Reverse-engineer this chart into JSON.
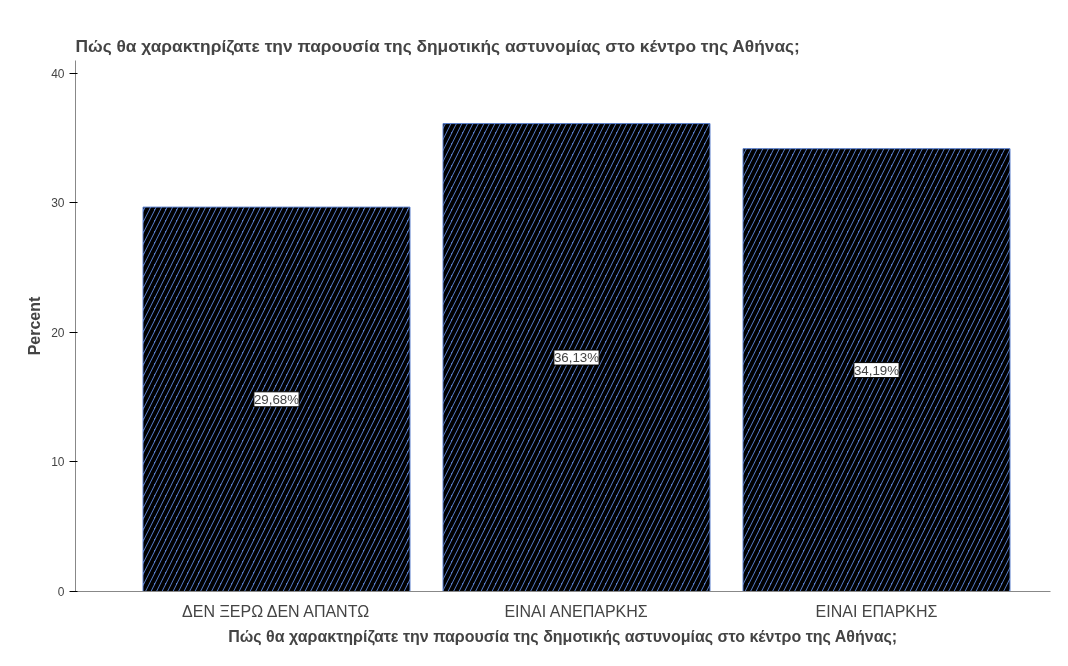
{
  "chart_data": {
    "type": "bar",
    "title": "Πώς θα χαρακτηρίζατε την παρουσία της δημοτικής αστυνομίας στο κέντρο της Αθήνας;",
    "xlabel": "Πώς θα χαρακτηρίζατε την παρουσία της δημοτικής αστυνομίας στο κέντρο της Αθήνας;",
    "ylabel": "Percent",
    "categories": [
      "ΔΕΝ ΞΕΡΩ ΔΕΝ ΑΠΑΝΤΩ",
      "ΕΙΝΑΙ ΑΝΕΠΑΡΚΗΣ",
      "ΕΙΝΑΙ ΕΠΑΡΚΗΣ"
    ],
    "values": [
      29.68,
      36.13,
      34.19
    ],
    "value_labels": [
      "29,68%",
      "36,13%",
      "34,19%"
    ],
    "color": "#5a7fcc",
    "ylim": [
      0,
      41
    ],
    "yticks": [
      0,
      10,
      20,
      30,
      40
    ],
    "grid": false
  }
}
